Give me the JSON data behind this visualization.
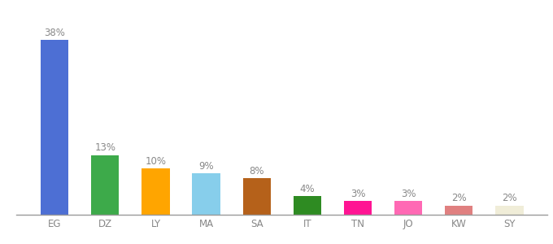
{
  "categories": [
    "EG",
    "DZ",
    "LY",
    "MA",
    "SA",
    "IT",
    "TN",
    "JO",
    "KW",
    "SY"
  ],
  "values": [
    38,
    13,
    10,
    9,
    8,
    4,
    3,
    3,
    2,
    2
  ],
  "bar_colors": [
    "#4D6FD4",
    "#3DAA4A",
    "#FFA500",
    "#87CEEB",
    "#B5611A",
    "#2E8B22",
    "#FF1493",
    "#FF69B4",
    "#E08080",
    "#F0EDD8"
  ],
  "label_fontsize": 8.5,
  "tick_fontsize": 8.5,
  "ylim": [
    0,
    43
  ],
  "label_color": "#888888",
  "tick_color": "#888888",
  "background_color": "#ffffff",
  "bar_width": 0.55
}
